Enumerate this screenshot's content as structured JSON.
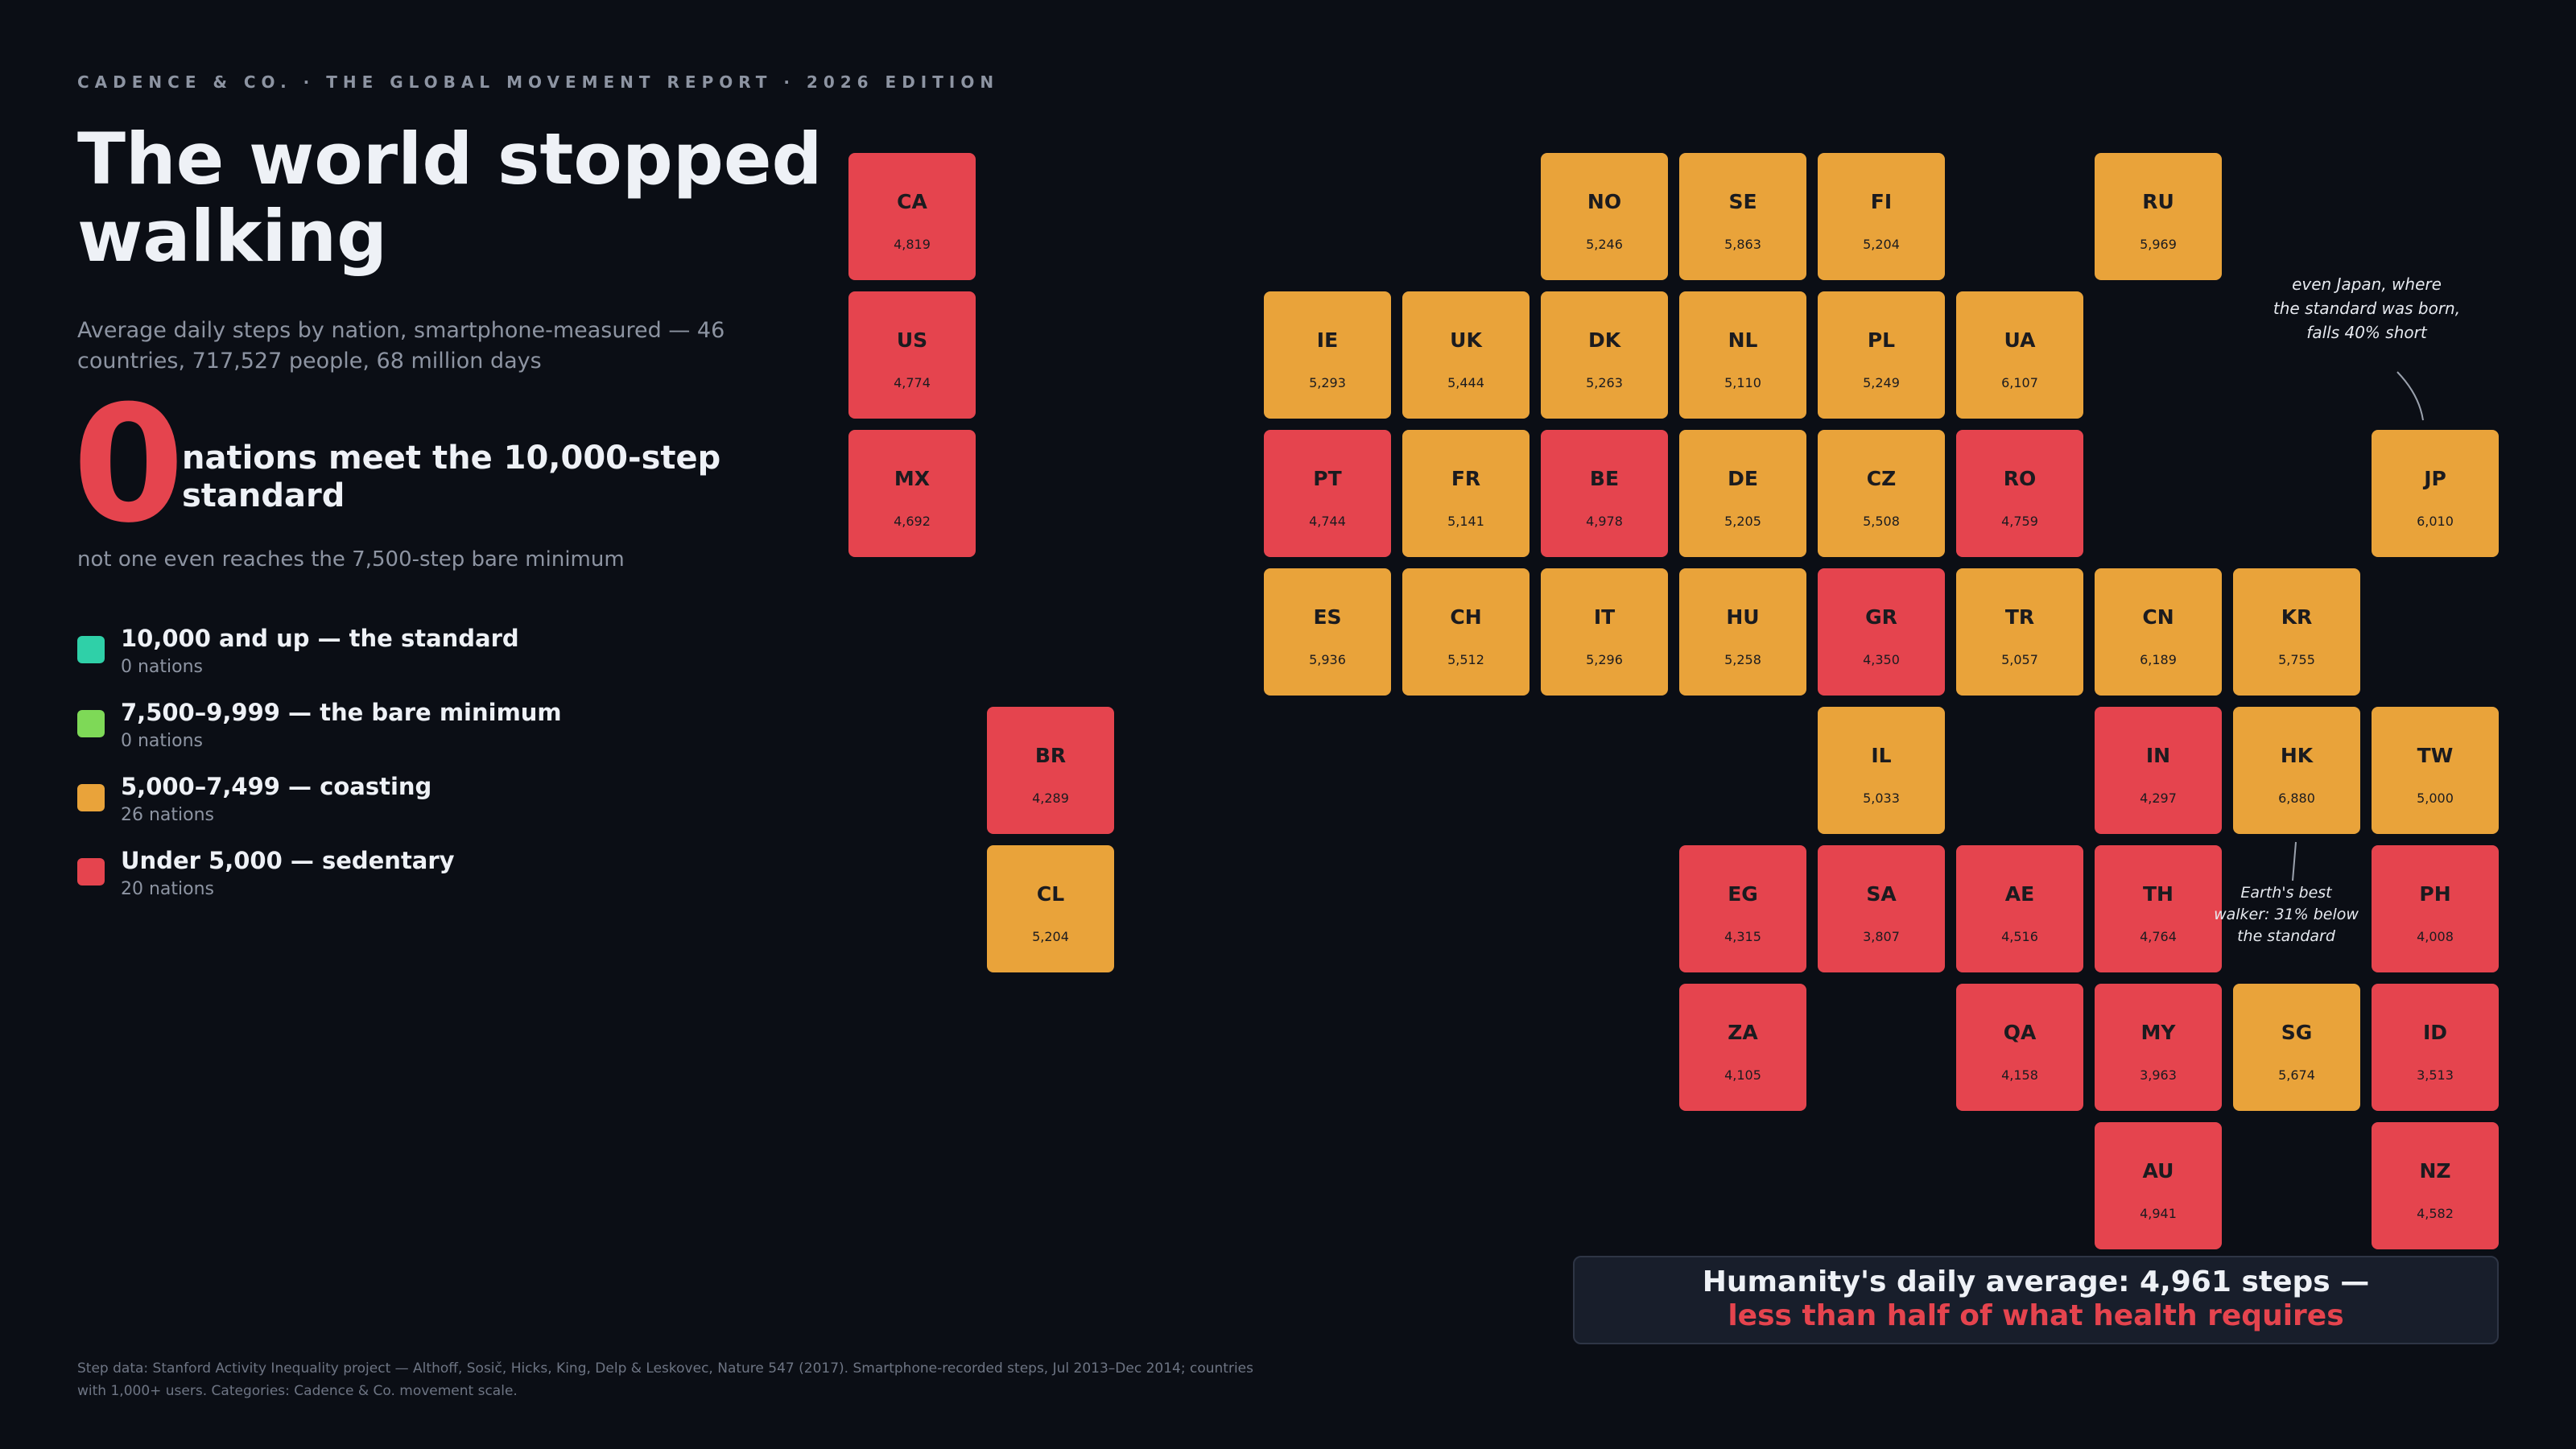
{
  "header": {
    "kicker": "CADENCE & CO. · THE GLOBAL MOVEMENT REPORT · 2026 EDITION",
    "title": "The world stopped walking",
    "subtitle": "Average daily steps by nation, smartphone-measured — 46 countries, 717,527 people, 68 million days"
  },
  "stat": {
    "number": "0",
    "headline": "nations meet the 10,000-step standard",
    "subnote": "not one even reaches the 7,500-step bare minimum"
  },
  "legend": [
    {
      "label": "10,000 and up — the standard",
      "count": "0 nations",
      "color": "#2fd0a8"
    },
    {
      "label": "7,500–9,999 — the bare minimum",
      "count": "0 nations",
      "color": "#7ed957"
    },
    {
      "label": "5,000–7,499 — coasting",
      "count": "26 nations",
      "color": "#e9a33a"
    },
    {
      "label": "Under 5,000 — sedentary",
      "count": "20 nations",
      "color": "#e5444e"
    }
  ],
  "colors": {
    "coasting": "#e9a33a",
    "sedentary": "#e5444e"
  },
  "countries": [
    {
      "code": "CA",
      "steps": "4,819",
      "col": 0,
      "row": 0,
      "category": "sedentary"
    },
    {
      "code": "US",
      "steps": "4,774",
      "col": 0,
      "row": 1,
      "category": "sedentary"
    },
    {
      "code": "MX",
      "steps": "4,692",
      "col": 0,
      "row": 2,
      "category": "sedentary"
    },
    {
      "code": "BR",
      "steps": "4,289",
      "col": 1,
      "row": 4,
      "category": "sedentary"
    },
    {
      "code": "CL",
      "steps": "5,204",
      "col": 1,
      "row": 5,
      "category": "coasting"
    },
    {
      "code": "NO",
      "steps": "5,246",
      "col": 5,
      "row": 0,
      "category": "coasting"
    },
    {
      "code": "SE",
      "steps": "5,863",
      "col": 6,
      "row": 0,
      "category": "coasting"
    },
    {
      "code": "FI",
      "steps": "5,204",
      "col": 7,
      "row": 0,
      "category": "coasting"
    },
    {
      "code": "RU",
      "steps": "5,969",
      "col": 9,
      "row": 0,
      "category": "coasting"
    },
    {
      "code": "IE",
      "steps": "5,293",
      "col": 3,
      "row": 1,
      "category": "coasting"
    },
    {
      "code": "UK",
      "steps": "5,444",
      "col": 4,
      "row": 1,
      "category": "coasting"
    },
    {
      "code": "DK",
      "steps": "5,263",
      "col": 5,
      "row": 1,
      "category": "coasting"
    },
    {
      "code": "NL",
      "steps": "5,110",
      "col": 6,
      "row": 1,
      "category": "coasting"
    },
    {
      "code": "PL",
      "steps": "5,249",
      "col": 7,
      "row": 1,
      "category": "coasting"
    },
    {
      "code": "UA",
      "steps": "6,107",
      "col": 8,
      "row": 1,
      "category": "coasting"
    },
    {
      "code": "PT",
      "steps": "4,744",
      "col": 3,
      "row": 2,
      "category": "sedentary"
    },
    {
      "code": "FR",
      "steps": "5,141",
      "col": 4,
      "row": 2,
      "category": "coasting"
    },
    {
      "code": "BE",
      "steps": "4,978",
      "col": 5,
      "row": 2,
      "category": "sedentary"
    },
    {
      "code": "DE",
      "steps": "5,205",
      "col": 6,
      "row": 2,
      "category": "coasting"
    },
    {
      "code": "CZ",
      "steps": "5,508",
      "col": 7,
      "row": 2,
      "category": "coasting"
    },
    {
      "code": "RO",
      "steps": "4,759",
      "col": 8,
      "row": 2,
      "category": "sedentary"
    },
    {
      "code": "JP",
      "steps": "6,010",
      "col": 11,
      "row": 2,
      "category": "coasting"
    },
    {
      "code": "ES",
      "steps": "5,936",
      "col": 3,
      "row": 3,
      "category": "coasting"
    },
    {
      "code": "CH",
      "steps": "5,512",
      "col": 4,
      "row": 3,
      "category": "coasting"
    },
    {
      "code": "IT",
      "steps": "5,296",
      "col": 5,
      "row": 3,
      "category": "coasting"
    },
    {
      "code": "HU",
      "steps": "5,258",
      "col": 6,
      "row": 3,
      "category": "coasting"
    },
    {
      "code": "GR",
      "steps": "4,350",
      "col": 7,
      "row": 3,
      "category": "sedentary"
    },
    {
      "code": "TR",
      "steps": "5,057",
      "col": 8,
      "row": 3,
      "category": "coasting"
    },
    {
      "code": "CN",
      "steps": "6,189",
      "col": 9,
      "row": 3,
      "category": "coasting"
    },
    {
      "code": "KR",
      "steps": "5,755",
      "col": 10,
      "row": 3,
      "category": "coasting"
    },
    {
      "code": "IL",
      "steps": "5,033",
      "col": 7,
      "row": 4,
      "category": "coasting"
    },
    {
      "code": "IN",
      "steps": "4,297",
      "col": 9,
      "row": 4,
      "category": "sedentary"
    },
    {
      "code": "HK",
      "steps": "6,880",
      "col": 10,
      "row": 4,
      "category": "coasting"
    },
    {
      "code": "TW",
      "steps": "5,000",
      "col": 11,
      "row": 4,
      "category": "coasting"
    },
    {
      "code": "EG",
      "steps": "4,315",
      "col": 6,
      "row": 5,
      "category": "sedentary"
    },
    {
      "code": "SA",
      "steps": "3,807",
      "col": 7,
      "row": 5,
      "category": "sedentary"
    },
    {
      "code": "AE",
      "steps": "4,516",
      "col": 8,
      "row": 5,
      "category": "sedentary"
    },
    {
      "code": "TH",
      "steps": "4,764",
      "col": 9,
      "row": 5,
      "category": "sedentary"
    },
    {
      "code": "PH",
      "steps": "4,008",
      "col": 11,
      "row": 5,
      "category": "sedentary"
    },
    {
      "code": "ZA",
      "steps": "4,105",
      "col": 6,
      "row": 6,
      "category": "sedentary"
    },
    {
      "code": "QA",
      "steps": "4,158",
      "col": 8,
      "row": 6,
      "category": "sedentary"
    },
    {
      "code": "MY",
      "steps": "3,963",
      "col": 9,
      "row": 6,
      "category": "sedentary"
    },
    {
      "code": "SG",
      "steps": "5,674",
      "col": 10,
      "row": 6,
      "category": "coasting"
    },
    {
      "code": "ID",
      "steps": "3,513",
      "col": 11,
      "row": 6,
      "category": "sedentary"
    },
    {
      "code": "AU",
      "steps": "4,941",
      "col": 9,
      "row": 7,
      "category": "sedentary"
    },
    {
      "code": "NZ",
      "steps": "4,582",
      "col": 11,
      "row": 7,
      "category": "sedentary"
    }
  ],
  "annotations": {
    "japan": [
      "even Japan, where",
      "the standard was born,",
      "falls 40% short"
    ],
    "hongkong": [
      "Earth's best",
      "walker: 31% below",
      "the standard"
    ]
  },
  "summary": {
    "line1": "Humanity's daily average: 4,961 steps —",
    "line2": "less than half of what health requires"
  },
  "footnote": "Step data: Stanford Activity Inequality project — Althoff, Sosič, Hicks, King, Delp & Leskovec, Nature 547 (2017). Smartphone-recorded steps, Jul 2013–Dec 2014; countries with 1,000+ users. Categories: Cadence & Co. movement scale."
}
